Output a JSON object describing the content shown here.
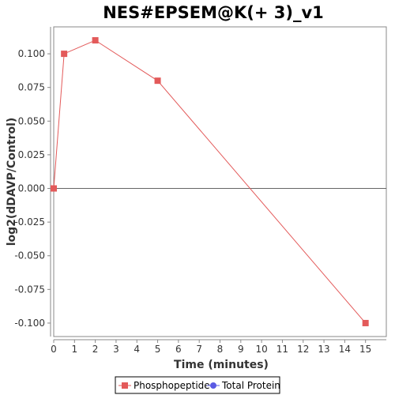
{
  "chart_data": {
    "type": "line",
    "title": "NES#EPSEM@K(+ 3)_v1",
    "xlabel": "Time (minutes)",
    "ylabel": "log2(dDAVP/Control)",
    "xlim": [
      0,
      16
    ],
    "ylim": [
      -0.11,
      0.12
    ],
    "xticks": [
      0,
      1,
      2,
      3,
      4,
      5,
      6,
      7,
      8,
      9,
      10,
      11,
      12,
      13,
      14,
      15
    ],
    "yticks": [
      0.1,
      0.075,
      0.05,
      0.025,
      0.0,
      -0.025,
      -0.05,
      -0.075,
      -0.1
    ],
    "ytick_labels": [
      "0.100",
      "0.075",
      "0.050",
      "0.025",
      "0.000",
      "-0.025",
      "-0.050",
      "-0.075",
      "-0.100"
    ],
    "zero_line": true,
    "grid": false,
    "legend_position": "bottom",
    "series": [
      {
        "name": "Phosphopeptide",
        "color": "#e35a5a",
        "marker": "square",
        "x": [
          0,
          0.5,
          2,
          5,
          15
        ],
        "y": [
          0.0,
          0.1,
          0.11,
          0.08,
          -0.1
        ]
      },
      {
        "name": "Total Protein",
        "color": "#5a5ae3",
        "marker": "circle",
        "x": [],
        "y": []
      }
    ]
  }
}
